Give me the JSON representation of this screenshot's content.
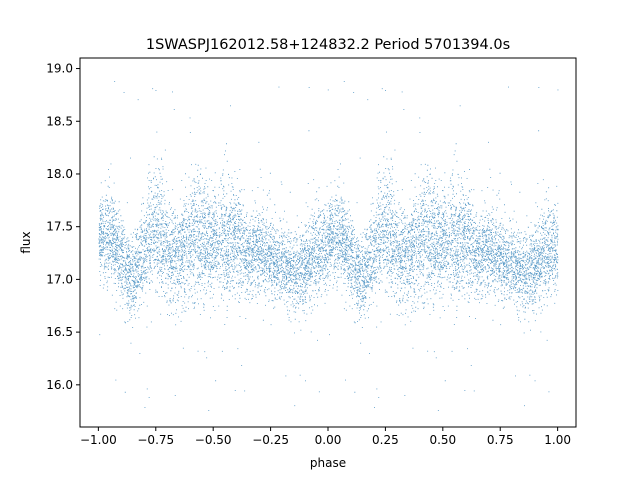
{
  "chart_data": {
    "type": "scatter",
    "title": "1SWASPJ162012.58+124832.2 Period 5701394.0s",
    "xlabel": "phase",
    "ylabel": "flux",
    "xlim": [
      -1.08,
      1.08
    ],
    "ylim": [
      15.6,
      19.1
    ],
    "xticks": [
      -1.0,
      -0.75,
      -0.5,
      -0.25,
      0.0,
      0.25,
      0.5,
      0.75,
      1.0
    ],
    "xtick_labels": [
      "−1.00",
      "−0.75",
      "−0.50",
      "−0.25",
      "0.00",
      "0.25",
      "0.50",
      "0.75",
      "1.00"
    ],
    "yticks": [
      16.0,
      16.5,
      17.0,
      17.5,
      18.0,
      18.5,
      19.0
    ],
    "ytick_labels": [
      "16.0",
      "16.5",
      "17.0",
      "17.5",
      "18.0",
      "18.5",
      "19.0"
    ],
    "grid": false,
    "legend": "none",
    "marker_color": "#1f77b4",
    "series": [
      {
        "profile_phase": [
          0.0,
          0.05,
          0.1,
          0.15,
          0.2,
          0.25,
          0.3,
          0.35,
          0.4,
          0.45,
          0.5,
          0.55,
          0.6,
          0.65,
          0.7,
          0.75,
          0.8,
          0.85,
          0.9,
          0.95,
          1.0
        ],
        "profile_mean_flux": [
          17.35,
          17.45,
          17.2,
          17.0,
          17.3,
          17.55,
          17.25,
          17.2,
          17.4,
          17.4,
          17.35,
          17.35,
          17.4,
          17.25,
          17.3,
          17.2,
          17.15,
          17.05,
          17.1,
          17.3,
          17.3
        ],
        "profile_scatter": [
          0.22,
          0.22,
          0.2,
          0.2,
          0.22,
          0.3,
          0.25,
          0.22,
          0.3,
          0.3,
          0.25,
          0.3,
          0.25,
          0.2,
          0.2,
          0.2,
          0.18,
          0.18,
          0.2,
          0.22,
          0.22
        ],
        "outlier_flux_range": [
          15.75,
          18.95
        ]
      }
    ]
  }
}
